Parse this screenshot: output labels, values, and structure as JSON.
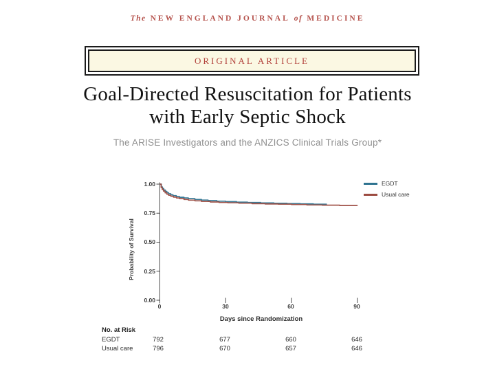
{
  "masthead": {
    "word_the": "The",
    "segment1": "NEW ENGLAND JOURNAL",
    "word_of": "of",
    "segment2": "MEDICINE"
  },
  "article_banner": {
    "label": "ORIGINAL ARTICLE"
  },
  "title": {
    "line1": "Goal-Directed Resuscitation for Patients",
    "line2": "with Early Septic Shock"
  },
  "byline": "The ARISE Investigators and the ANZICS Clinical Trials Group*",
  "chart_data": {
    "type": "line",
    "subtype": "kaplan-meier-step",
    "title": "",
    "xlabel": "Days since Randomization",
    "ylabel": "Probability of Survival",
    "xticks": [
      "0",
      "30",
      "60",
      "90"
    ],
    "yticks": [
      "1.00",
      "0.75",
      "0.50",
      "0.25",
      "0.00"
    ],
    "xlim": [
      0,
      90
    ],
    "ylim": [
      0,
      1
    ],
    "grid": false,
    "legend_position": "top-right",
    "series": [
      {
        "name": "EGDT",
        "color": "#2e7390",
        "points": [
          [
            0,
            1.0
          ],
          [
            0.7,
            0.976
          ],
          [
            1.2,
            0.962
          ],
          [
            1.8,
            0.949
          ],
          [
            2.5,
            0.937
          ],
          [
            3.2,
            0.926
          ],
          [
            4,
            0.917
          ],
          [
            5,
            0.908
          ],
          [
            6,
            0.901
          ],
          [
            7.5,
            0.893
          ],
          [
            9,
            0.887
          ],
          [
            11,
            0.881
          ],
          [
            13,
            0.875
          ],
          [
            16,
            0.868
          ],
          [
            19,
            0.863
          ],
          [
            22,
            0.858
          ],
          [
            26,
            0.853
          ],
          [
            30,
            0.849
          ],
          [
            35,
            0.845
          ],
          [
            40,
            0.842
          ],
          [
            46,
            0.838
          ],
          [
            52,
            0.835
          ],
          [
            58,
            0.832
          ],
          [
            64,
            0.83
          ],
          [
            70,
            0.827
          ],
          [
            76,
            0.825
          ]
        ]
      },
      {
        "name": "Usual care",
        "color": "#9c4b40",
        "points": [
          [
            0,
            1.0
          ],
          [
            0.6,
            0.971
          ],
          [
            1.1,
            0.953
          ],
          [
            1.7,
            0.939
          ],
          [
            2.4,
            0.925
          ],
          [
            3.2,
            0.913
          ],
          [
            4,
            0.904
          ],
          [
            5,
            0.896
          ],
          [
            6.2,
            0.888
          ],
          [
            7.6,
            0.881
          ],
          [
            9,
            0.875
          ],
          [
            11,
            0.868
          ],
          [
            13,
            0.862
          ],
          [
            16,
            0.856
          ],
          [
            19,
            0.851
          ],
          [
            23,
            0.846
          ],
          [
            27,
            0.842
          ],
          [
            31,
            0.839
          ],
          [
            36,
            0.836
          ],
          [
            42,
            0.832
          ],
          [
            48,
            0.829
          ],
          [
            54,
            0.827
          ],
          [
            60,
            0.824
          ],
          [
            67,
            0.821
          ],
          [
            74,
            0.819
          ],
          [
            82,
            0.816
          ],
          [
            90,
            0.813
          ]
        ]
      }
    ]
  },
  "risk_table": {
    "title": "No. at Risk",
    "days": [
      "0",
      "30",
      "60",
      "90"
    ],
    "rows": [
      {
        "label": "EGDT",
        "values": [
          "792",
          "677",
          "660",
          "646"
        ]
      },
      {
        "label": "Usual care",
        "values": [
          "796",
          "670",
          "657",
          "646"
        ]
      }
    ]
  },
  "colors": {
    "masthead_red": "#b5524c",
    "banner_red": "#b2423c",
    "banner_cream": "#fbf8e3",
    "egdt_blue": "#2e7390",
    "usual_care_maroon": "#9c4b40",
    "axis_gray": "#4a4a4a"
  }
}
